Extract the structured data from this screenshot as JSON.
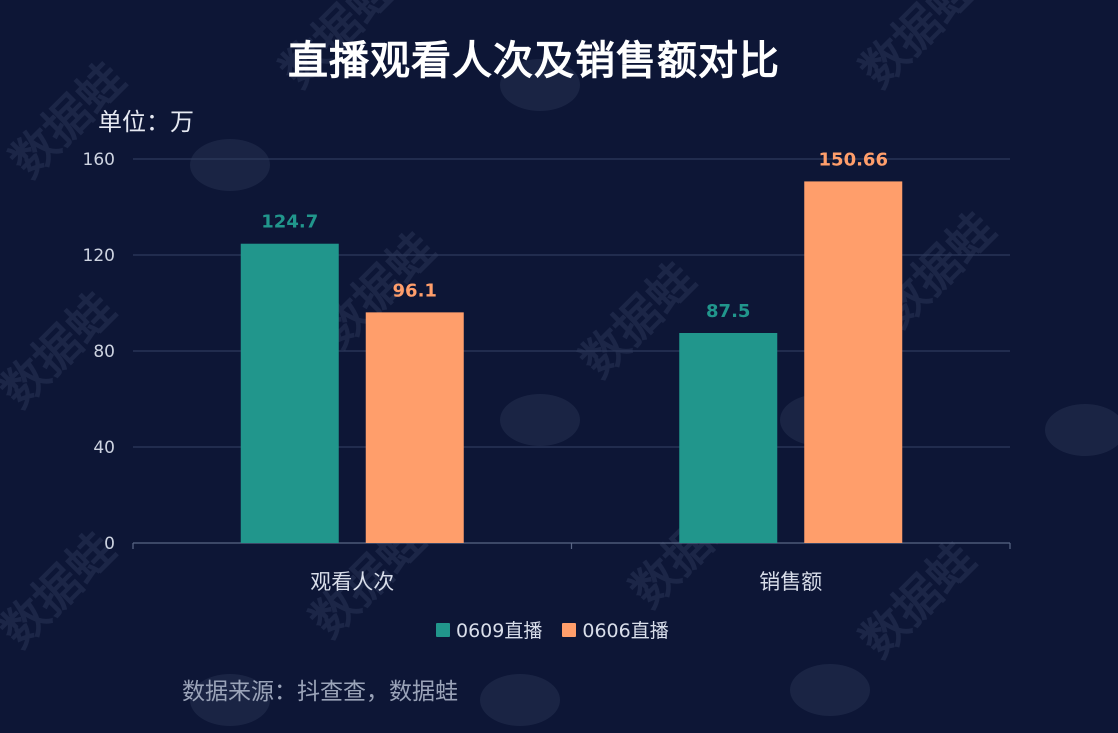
{
  "header": {
    "title": "直播观看人次及销售额对比",
    "unit": "单位：万"
  },
  "footer": {
    "source": "数据来源：抖查查，数据蛙"
  },
  "watermark": "数据蛙",
  "chart_data": {
    "type": "bar",
    "title": "直播观看人次及销售额对比",
    "ylabel": "单位：万",
    "categories": [
      "观看人次",
      "销售额"
    ],
    "series": [
      {
        "name": "0609直播",
        "values": [
          124.7,
          87.5
        ],
        "color": "#21968c"
      },
      {
        "name": "0606直播",
        "values": [
          96.1,
          150.66
        ],
        "color": "#ff9e6b"
      }
    ],
    "data_labels": [
      [
        "124.7",
        "87.5"
      ],
      [
        "96.1",
        "150.66"
      ]
    ],
    "ylim": [
      0,
      160
    ],
    "yticks": [
      0,
      40,
      80,
      120,
      160
    ],
    "grid": true,
    "legend": "bottom-center"
  }
}
